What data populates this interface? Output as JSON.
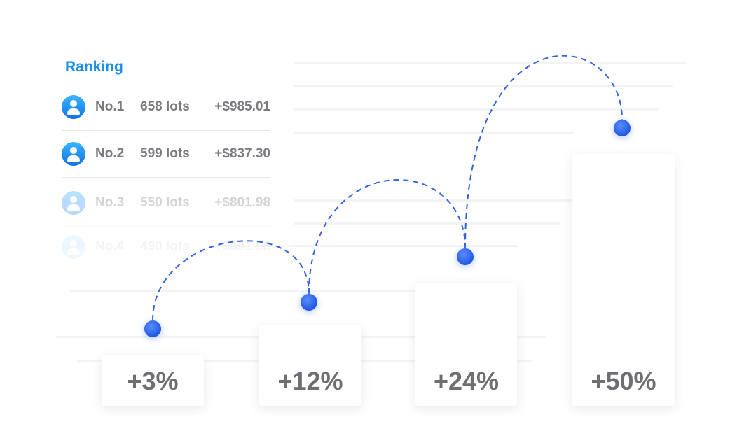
{
  "ranking": {
    "title": "Ranking",
    "rows": [
      {
        "rank": "No.1",
        "lots": "658 lots",
        "profit": "+$985.01"
      },
      {
        "rank": "No.2",
        "lots": "599 lots",
        "profit": "+$837.30"
      },
      {
        "rank": "No.3",
        "lots": "550 lots",
        "profit": "+$801.98"
      },
      {
        "rank": "No.4",
        "lots": "490 lots",
        "profit": "+$801.98"
      }
    ]
  },
  "steps": [
    "+3%",
    "+12%",
    "+24%",
    "+50%"
  ]
}
